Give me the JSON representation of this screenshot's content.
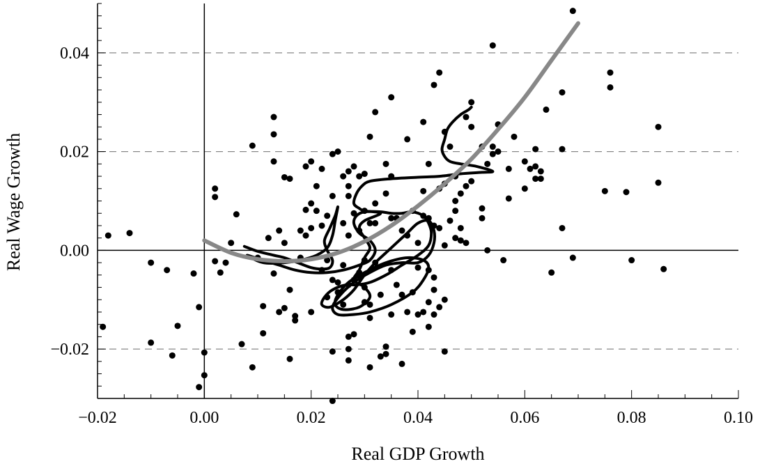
{
  "chart_data": {
    "type": "scatter",
    "title": "",
    "xlabel": "Real GDP Growth",
    "ylabel": "Real Wage Growth",
    "xlim": [
      -0.02,
      0.1
    ],
    "ylim": [
      -0.03,
      0.05
    ],
    "x_ticks": [
      -0.02,
      0.0,
      0.02,
      0.04,
      0.06,
      0.08,
      0.1
    ],
    "x_tick_labels": [
      "−0.02",
      "0.00",
      "0.02",
      "0.04",
      "0.06",
      "0.08",
      "0.10"
    ],
    "y_ticks": [
      -0.02,
      0.0,
      0.02,
      0.04
    ],
    "y_tick_labels": [
      "−0.02",
      "0.00",
      "0.02",
      "0.04"
    ],
    "grid": "dashed horizontal at y ticks",
    "colors": {
      "points": "#000000",
      "path": "#000000",
      "fit": "#888888",
      "grid": "#888888"
    },
    "points": [
      [
        -0.019,
        -0.0155
      ],
      [
        -0.018,
        0.003
      ],
      [
        -0.014,
        0.0035
      ],
      [
        -0.01,
        -0.0025
      ],
      [
        -0.01,
        -0.0187
      ],
      [
        -0.007,
        -0.004
      ],
      [
        -0.006,
        -0.0213
      ],
      [
        -0.005,
        -0.0153
      ],
      [
        -0.002,
        -0.0047
      ],
      [
        -0.001,
        -0.0115
      ],
      [
        -0.001,
        -0.0277
      ],
      [
        0.0,
        -0.0207
      ],
      [
        0.0,
        -0.0253
      ],
      [
        0.002,
        0.0125
      ],
      [
        0.002,
        0.0108
      ],
      [
        0.002,
        -0.0022
      ],
      [
        0.003,
        -0.0045
      ],
      [
        0.004,
        -0.0025
      ],
      [
        0.005,
        0.0015
      ],
      [
        0.006,
        0.0073
      ],
      [
        0.007,
        -0.019
      ],
      [
        0.009,
        0.0212
      ],
      [
        0.009,
        -0.0237
      ],
      [
        0.01,
        -0.0015
      ],
      [
        0.011,
        -0.0168
      ],
      [
        0.011,
        -0.0113
      ],
      [
        0.012,
        0.0025
      ],
      [
        0.013,
        0.027
      ],
      [
        0.013,
        0.0235
      ],
      [
        0.013,
        0.018
      ],
      [
        0.013,
        -0.0047
      ],
      [
        0.014,
        0.004
      ],
      [
        0.014,
        -0.0125
      ],
      [
        0.015,
        0.0148
      ],
      [
        0.015,
        0.0015
      ],
      [
        0.015,
        -0.0117
      ],
      [
        0.016,
        0.0145
      ],
      [
        0.016,
        -0.008
      ],
      [
        0.016,
        -0.022
      ],
      [
        0.017,
        -0.0133
      ],
      [
        0.017,
        -0.0142
      ],
      [
        0.018,
        0.004
      ],
      [
        0.018,
        -0.0015
      ],
      [
        0.019,
        0.003
      ],
      [
        0.019,
        0.0082
      ],
      [
        0.019,
        0.017
      ],
      [
        0.02,
        0.0095
      ],
      [
        0.02,
        0.0045
      ],
      [
        0.02,
        -0.0125
      ],
      [
        0.02,
        0.018
      ],
      [
        0.021,
        0.013
      ],
      [
        0.021,
        0.008
      ],
      [
        0.022,
        0.0165
      ],
      [
        0.022,
        0.005
      ],
      [
        0.022,
        -0.004
      ],
      [
        0.023,
        0.007
      ],
      [
        0.023,
        -0.002
      ],
      [
        0.023,
        -0.0095
      ],
      [
        0.024,
        0.0195
      ],
      [
        0.024,
        0.011
      ],
      [
        0.024,
        -0.006
      ],
      [
        0.024,
        -0.0205
      ],
      [
        0.024,
        -0.0305
      ],
      [
        0.025,
        0.02
      ],
      [
        0.025,
        -0.0065
      ],
      [
        0.025,
        -0.0085
      ],
      [
        0.026,
        0.015
      ],
      [
        0.026,
        0.0055
      ],
      [
        0.026,
        -0.003
      ],
      [
        0.026,
        -0.011
      ],
      [
        0.027,
        0.016
      ],
      [
        0.027,
        0.013
      ],
      [
        0.027,
        0.011
      ],
      [
        0.027,
        0.003
      ],
      [
        0.027,
        -0.007
      ],
      [
        0.027,
        -0.0175
      ],
      [
        0.027,
        -0.02
      ],
      [
        0.027,
        -0.0223
      ],
      [
        0.028,
        0.017
      ],
      [
        0.028,
        0.0075
      ],
      [
        0.028,
        -0.006
      ],
      [
        0.028,
        -0.017
      ],
      [
        0.029,
        0.015
      ],
      [
        0.029,
        0.004
      ],
      [
        0.029,
        -0.0045
      ],
      [
        0.03,
        0.0155
      ],
      [
        0.03,
        0.008
      ],
      [
        0.03,
        -0.002
      ],
      [
        0.03,
        -0.0075
      ],
      [
        0.03,
        -0.0105
      ],
      [
        0.031,
        0.023
      ],
      [
        0.031,
        0.0055
      ],
      [
        0.031,
        -0.011
      ],
      [
        0.031,
        -0.0137
      ],
      [
        0.031,
        -0.0237
      ],
      [
        0.032,
        0.028
      ],
      [
        0.032,
        0.0095
      ],
      [
        0.032,
        0.0055
      ],
      [
        0.032,
        -0.0025
      ],
      [
        0.033,
        -0.009
      ],
      [
        0.033,
        -0.0215
      ],
      [
        0.034,
        0.0175
      ],
      [
        0.034,
        0.0115
      ],
      [
        0.034,
        -0.0195
      ],
      [
        0.034,
        -0.021
      ],
      [
        0.035,
        0.031
      ],
      [
        0.035,
        0.015
      ],
      [
        0.035,
        0.0065
      ],
      [
        0.035,
        -0.004
      ],
      [
        0.035,
        -0.013
      ],
      [
        0.036,
        0.0065
      ],
      [
        0.036,
        -0.007
      ],
      [
        0.037,
        0.004
      ],
      [
        0.037,
        -0.009
      ],
      [
        0.037,
        -0.023
      ],
      [
        0.038,
        0.0225
      ],
      [
        0.038,
        0.003
      ],
      [
        0.038,
        -0.0125
      ],
      [
        0.039,
        0.008
      ],
      [
        0.039,
        -0.0085
      ],
      [
        0.039,
        -0.0165
      ],
      [
        0.04,
        0.0015
      ],
      [
        0.04,
        -0.013
      ],
      [
        0.04,
        -0.0035
      ],
      [
        0.041,
        0.026
      ],
      [
        0.041,
        0.012
      ],
      [
        0.041,
        0.007
      ],
      [
        0.041,
        -0.0125
      ],
      [
        0.042,
        0.0175
      ],
      [
        0.042,
        0.0065
      ],
      [
        0.042,
        -0.004
      ],
      [
        0.042,
        -0.0105
      ],
      [
        0.042,
        -0.0155
      ],
      [
        0.043,
        0.0335
      ],
      [
        0.043,
        0.005
      ],
      [
        0.043,
        -0.0055
      ],
      [
        0.043,
        -0.008
      ],
      [
        0.043,
        -0.013
      ],
      [
        0.044,
        0.036
      ],
      [
        0.044,
        0.0125
      ],
      [
        0.044,
        0.0045
      ],
      [
        0.044,
        -0.0115
      ],
      [
        0.045,
        0.024
      ],
      [
        0.045,
        0.0135
      ],
      [
        0.045,
        0.001
      ],
      [
        0.045,
        -0.01
      ],
      [
        0.045,
        -0.0205
      ],
      [
        0.046,
        0.021
      ],
      [
        0.046,
        0.006
      ],
      [
        0.047,
        0.015
      ],
      [
        0.047,
        0.008
      ],
      [
        0.047,
        0.0025
      ],
      [
        0.047,
        0.01
      ],
      [
        0.048,
        0.0115
      ],
      [
        0.048,
        0.0045
      ],
      [
        0.048,
        0.002
      ],
      [
        0.049,
        0.027
      ],
      [
        0.049,
        0.013
      ],
      [
        0.049,
        0.0015
      ],
      [
        0.05,
        0.03
      ],
      [
        0.05,
        0.025
      ],
      [
        0.05,
        0.014
      ],
      [
        0.052,
        0.021
      ],
      [
        0.052,
        0.0085
      ],
      [
        0.052,
        0.0065
      ],
      [
        0.053,
        0.0175
      ],
      [
        0.053,
        0.0
      ],
      [
        0.054,
        0.0415
      ],
      [
        0.054,
        0.021
      ],
      [
        0.054,
        0.0195
      ],
      [
        0.055,
        0.0255
      ],
      [
        0.055,
        0.02
      ],
      [
        0.056,
        -0.002
      ],
      [
        0.057,
        0.0165
      ],
      [
        0.057,
        0.0105
      ],
      [
        0.058,
        0.023
      ],
      [
        0.06,
        0.018
      ],
      [
        0.06,
        0.0125
      ],
      [
        0.061,
        0.0165
      ],
      [
        0.062,
        0.0205
      ],
      [
        0.062,
        0.017
      ],
      [
        0.062,
        0.0145
      ],
      [
        0.063,
        0.016
      ],
      [
        0.063,
        0.0145
      ],
      [
        0.064,
        0.0285
      ],
      [
        0.065,
        -0.0045
      ],
      [
        0.067,
        0.032
      ],
      [
        0.067,
        0.0205
      ],
      [
        0.067,
        0.0045
      ],
      [
        0.069,
        0.0485
      ],
      [
        0.069,
        -0.0015
      ],
      [
        0.075,
        0.012
      ],
      [
        0.076,
        0.036
      ],
      [
        0.076,
        0.033
      ],
      [
        0.079,
        0.0118
      ],
      [
        0.08,
        -0.002
      ],
      [
        0.085,
        0.025
      ],
      [
        0.085,
        0.0137
      ],
      [
        0.086,
        -0.0038
      ]
    ],
    "path": [
      [
        0.0075,
        0.0008
      ],
      [
        0.01,
        -0.0002
      ],
      [
        0.013,
        -0.001
      ],
      [
        0.015,
        -0.0015
      ],
      [
        0.0175,
        -0.0025
      ],
      [
        0.02,
        -0.0035
      ],
      [
        0.022,
        -0.0038
      ],
      [
        0.0235,
        -0.0035
      ],
      [
        0.024,
        -0.002
      ],
      [
        0.023,
        0.0
      ],
      [
        0.0225,
        0.002
      ],
      [
        0.0235,
        0.0045
      ],
      [
        0.0245,
        0.007
      ],
      [
        0.025,
        0.0088
      ],
      [
        0.0245,
        0.006
      ],
      [
        0.024,
        0.003
      ],
      [
        0.023,
        0.0005
      ],
      [
        0.021,
        -0.001
      ],
      [
        0.018,
        -0.002
      ],
      [
        0.015,
        -0.0025
      ],
      [
        0.011,
        -0.0025
      ],
      [
        0.008,
        -0.001
      ],
      [
        0.011,
        -0.002
      ],
      [
        0.014,
        -0.003
      ],
      [
        0.017,
        -0.004
      ],
      [
        0.02,
        -0.0045
      ],
      [
        0.023,
        -0.0045
      ],
      [
        0.026,
        -0.004
      ],
      [
        0.029,
        -0.003
      ],
      [
        0.031,
        -0.002
      ],
      [
        0.032,
        0.0
      ],
      [
        0.031,
        0.002
      ],
      [
        0.029,
        0.0035
      ],
      [
        0.028,
        0.0055
      ],
      [
        0.0285,
        0.007
      ],
      [
        0.03,
        0.0078
      ],
      [
        0.033,
        0.0078
      ],
      [
        0.035,
        0.0075
      ],
      [
        0.037,
        0.0075
      ],
      [
        0.039,
        0.0078
      ],
      [
        0.041,
        0.007
      ],
      [
        0.042,
        0.0055
      ],
      [
        0.0425,
        0.0035
      ],
      [
        0.042,
        0.001
      ],
      [
        0.04,
        -0.001
      ],
      [
        0.037,
        -0.003
      ],
      [
        0.034,
        -0.005
      ],
      [
        0.031,
        -0.0065
      ],
      [
        0.0285,
        -0.007
      ],
      [
        0.0265,
        -0.007
      ],
      [
        0.024,
        -0.008
      ],
      [
        0.0225,
        -0.0095
      ],
      [
        0.022,
        -0.011
      ],
      [
        0.0235,
        -0.0115
      ],
      [
        0.026,
        -0.01
      ],
      [
        0.028,
        -0.008
      ],
      [
        0.03,
        -0.005
      ],
      [
        0.032,
        -0.0025
      ],
      [
        0.034,
        -0.0005
      ],
      [
        0.036,
        0.0015
      ],
      [
        0.038,
        0.0035
      ],
      [
        0.04,
        0.0055
      ],
      [
        0.042,
        0.006
      ],
      [
        0.043,
        0.004
      ],
      [
        0.043,
        0.0015
      ],
      [
        0.042,
        -0.001
      ],
      [
        0.04,
        -0.0025
      ],
      [
        0.037,
        -0.0025
      ],
      [
        0.034,
        -0.003
      ],
      [
        0.031,
        -0.0045
      ],
      [
        0.028,
        -0.0065
      ],
      [
        0.0255,
        -0.009
      ],
      [
        0.024,
        -0.0115
      ],
      [
        0.025,
        -0.013
      ],
      [
        0.028,
        -0.013
      ],
      [
        0.031,
        -0.0125
      ],
      [
        0.035,
        -0.011
      ],
      [
        0.039,
        -0.0085
      ],
      [
        0.041,
        -0.006
      ],
      [
        0.042,
        -0.0035
      ],
      [
        0.041,
        -0.002
      ],
      [
        0.038,
        -0.0015
      ],
      [
        0.034,
        -0.0025
      ],
      [
        0.03,
        -0.0045
      ],
      [
        0.027,
        -0.0065
      ],
      [
        0.025,
        -0.009
      ],
      [
        0.0245,
        -0.011
      ],
      [
        0.026,
        -0.012
      ],
      [
        0.029,
        -0.0115
      ],
      [
        0.031,
        -0.0095
      ],
      [
        0.03,
        -0.0075
      ],
      [
        0.028,
        -0.006
      ],
      [
        0.029,
        -0.004
      ],
      [
        0.03,
        -0.0015
      ],
      [
        0.031,
        0.0005
      ],
      [
        0.03,
        0.0025
      ],
      [
        0.029,
        0.0045
      ],
      [
        0.03,
        0.006
      ],
      [
        0.033,
        0.0075
      ],
      [
        0.03,
        0.008
      ],
      [
        0.029,
        0.0085
      ],
      [
        0.028,
        0.0095
      ],
      [
        0.0285,
        0.0115
      ],
      [
        0.0295,
        0.013
      ],
      [
        0.031,
        0.014
      ],
      [
        0.035,
        0.0145
      ],
      [
        0.04,
        0.0148
      ],
      [
        0.044,
        0.015
      ],
      [
        0.048,
        0.0155
      ],
      [
        0.052,
        0.0158
      ],
      [
        0.054,
        0.016
      ],
      [
        0.051,
        0.017
      ],
      [
        0.048,
        0.0175
      ],
      [
        0.046,
        0.018
      ],
      [
        0.045,
        0.019
      ],
      [
        0.0445,
        0.0205
      ],
      [
        0.045,
        0.0225
      ],
      [
        0.0455,
        0.0245
      ],
      [
        0.0465,
        0.026
      ],
      [
        0.048,
        0.0275
      ],
      [
        0.0495,
        0.0285
      ],
      [
        0.05,
        0.029
      ]
    ],
    "fit_curve": [
      [
        0.0,
        0.002
      ],
      [
        0.005,
        -0.0005
      ],
      [
        0.01,
        -0.0018
      ],
      [
        0.015,
        -0.0022
      ],
      [
        0.02,
        -0.0018
      ],
      [
        0.025,
        -0.0005
      ],
      [
        0.03,
        0.0018
      ],
      [
        0.035,
        0.005
      ],
      [
        0.04,
        0.009
      ],
      [
        0.045,
        0.0135
      ],
      [
        0.05,
        0.0185
      ],
      [
        0.055,
        0.0245
      ],
      [
        0.06,
        0.031
      ],
      [
        0.065,
        0.0385
      ],
      [
        0.07,
        0.046
      ]
    ]
  }
}
